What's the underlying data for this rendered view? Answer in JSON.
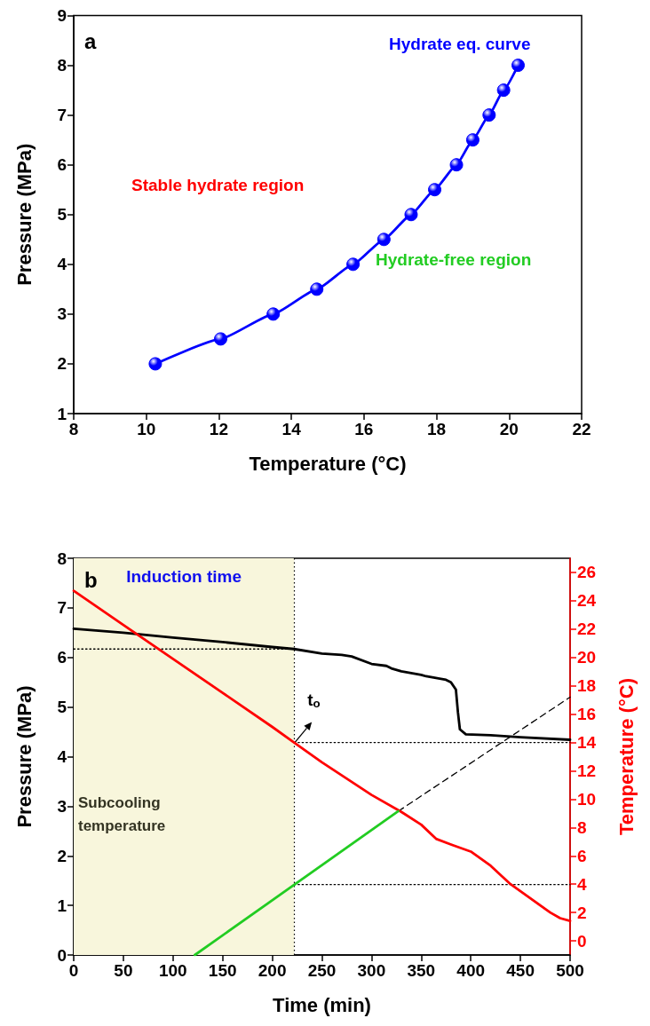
{
  "chart_data": [
    {
      "type": "line",
      "xlabel": "Temperature (°C)",
      "ylabel": "Pressure (MPa)",
      "xlim": [
        8,
        22
      ],
      "xticks": [
        8,
        10,
        12,
        14,
        16,
        18,
        20,
        22
      ],
      "ylim": [
        1,
        9
      ],
      "yticks": [
        1,
        2,
        3,
        4,
        5,
        6,
        7,
        8,
        9
      ],
      "marker": "circle",
      "grid": false,
      "series": [
        {
          "name": "Hydrate eq. curve",
          "color": "#0000ff",
          "x": [
            10.25,
            12.05,
            13.5,
            14.7,
            15.7,
            16.55,
            17.3,
            17.95,
            18.55,
            19.0,
            19.45,
            19.85,
            20.25
          ],
          "values": [
            2,
            2.5,
            3,
            3.5,
            4,
            4.5,
            5,
            5.5,
            6,
            6.5,
            7,
            7.5,
            8
          ]
        }
      ],
      "annotations": [
        "a",
        "Stable hydrate region",
        "Hydrate-free region"
      ]
    },
    {
      "type": "line",
      "xlabel": "Time (min)",
      "ylabel": "Pressure (MPa)",
      "y2label": "Temperature (°C)",
      "xlim": [
        0,
        500
      ],
      "xticks": [
        0,
        50,
        100,
        150,
        200,
        250,
        300,
        350,
        400,
        450,
        500
      ],
      "ylim": [
        0,
        8
      ],
      "yticks": [
        0,
        1,
        2,
        3,
        4,
        5,
        6,
        7,
        8
      ],
      "y2lim": [
        -1,
        27
      ],
      "y2ticks": [
        0,
        2,
        4,
        6,
        8,
        10,
        12,
        14,
        16,
        18,
        20,
        22,
        24,
        26
      ],
      "grid": false,
      "series": [
        {
          "color": "#000000",
          "x": [
            0,
            50,
            100,
            150,
            200,
            222,
            250,
            270,
            280,
            300,
            315,
            320,
            330,
            350,
            355,
            375,
            380,
            385,
            387,
            389,
            395,
            420,
            450,
            500
          ],
          "values": [
            6.58,
            6.5,
            6.4,
            6.31,
            6.21,
            6.17,
            6.08,
            6.05,
            6.02,
            5.87,
            5.83,
            5.78,
            5.72,
            5.65,
            5.62,
            5.55,
            5.5,
            5.35,
            4.9,
            4.55,
            4.45,
            4.43,
            4.39,
            4.34
          ]
        },
        {
          "color": "#ff0000",
          "axis": "y2",
          "x": [
            0,
            50,
            100,
            150,
            200,
            222,
            250,
            300,
            330,
            350,
            365,
            380,
            400,
            420,
            440,
            460,
            480,
            490,
            500
          ],
          "values": [
            24.7,
            22.3,
            19.9,
            17.5,
            15.1,
            14.0,
            12.6,
            10.3,
            9.1,
            8.2,
            7.2,
            6.8,
            6.3,
            5.3,
            4.0,
            3.0,
            2.0,
            1.6,
            1.4
          ]
        },
        {
          "color": "#22cc22",
          "x": [
            122,
            327
          ],
          "values": [
            0,
            2.9
          ]
        },
        {
          "color": "#000000",
          "line_style": "dashed",
          "x": [
            327,
            500
          ],
          "values": [
            2.9,
            5.2
          ]
        },
        {
          "color": "#000000",
          "line_style": "dotted",
          "x": [
            0,
            222
          ],
          "values": [
            6.17,
            6.17
          ]
        },
        {
          "color": "#000000",
          "line_style": "dotted",
          "axis": "y2",
          "x": [
            222,
            500
          ],
          "values": [
            14,
            14
          ]
        },
        {
          "color": "#000000",
          "line_style": "dotted",
          "x": [
            222,
            500
          ],
          "values": [
            1.42,
            1.42
          ]
        }
      ],
      "ref_lines": [
        {
          "axis": "x",
          "value": 222,
          "line_style": "dotted",
          "color": "#000000"
        }
      ],
      "bands": [
        {
          "axis": "x",
          "from": 0,
          "to": 222,
          "label": "Induction time",
          "color": "#f8f6dc"
        }
      ],
      "annotations": [
        "b",
        {
          "text": "t$_{o}$",
          "x": 222,
          "y": 4.27
        },
        "Subcooling temperature"
      ]
    }
  ]
}
